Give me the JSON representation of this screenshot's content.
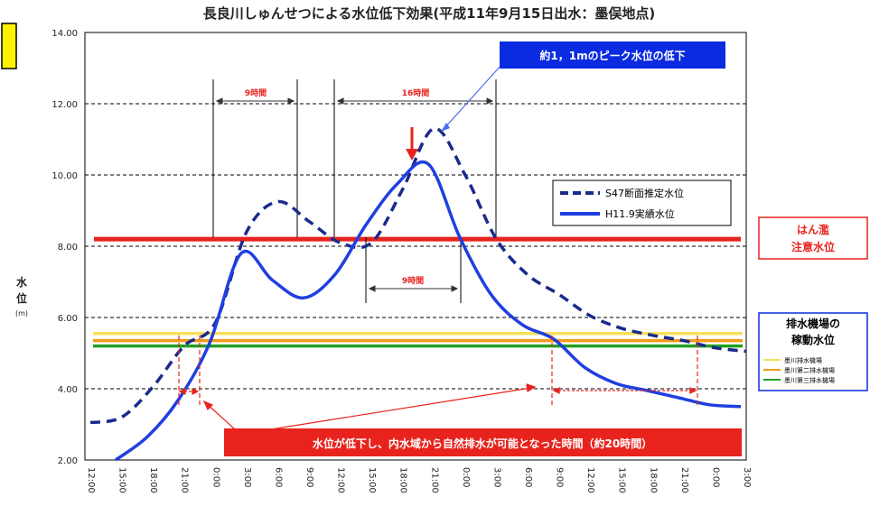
{
  "chart_data": {
    "type": "line",
    "title": "長良川しゅんせつによる水位低下効果(平成11年9月15日出水：墨俣地点)",
    "ylabel": "水\n位",
    "yunit": "(m)",
    "ylim": [
      2.0,
      14.0
    ],
    "yticks": [
      "2.00",
      "4.00",
      "6.00",
      "8.00",
      "10.00",
      "12.00",
      "14.00"
    ],
    "ytick_values": [
      2,
      4,
      6,
      8,
      10,
      12,
      14
    ],
    "xlabels": [
      "12:00",
      "15:00",
      "18:00",
      "21:00",
      "0:00",
      "3:00",
      "6:00",
      "9:00",
      "12:00",
      "15:00",
      "18:00",
      "21:00",
      "0:00",
      "3:00",
      "6:00",
      "9:00",
      "12:00",
      "15:00",
      "18:00",
      "21:00",
      "0:00",
      "3:00"
    ],
    "grid": "horizontal dashed",
    "series": [
      {
        "name": "S47断面推定水位",
        "style": "dashed",
        "color": "#1a2b8c",
        "values": [
          3.05,
          3.2,
          4.05,
          5.2,
          5.85,
          8.4,
          9.25,
          8.7,
          8.1,
          8.1,
          9.6,
          11.3,
          10.0,
          8.2,
          7.2,
          6.65,
          6.05,
          5.7,
          5.5,
          5.35,
          5.15,
          5.05
        ]
      },
      {
        "name": "H11.9実績水位",
        "style": "solid",
        "color": "#1f3fe0",
        "values": [
          null,
          1.65,
          2.65,
          3.7,
          5.3,
          7.8,
          7.05,
          6.55,
          7.2,
          8.6,
          9.75,
          10.3,
          8.25,
          6.65,
          5.8,
          5.4,
          4.6,
          4.15,
          3.95,
          3.75,
          3.55,
          3.5
        ]
      }
    ],
    "threshold_lines": [
      {
        "name": "はん濫注意水位",
        "value": 8.2,
        "color": "#e8231d"
      },
      {
        "name": "墨川排水機場",
        "value": 5.55,
        "color": "#f5e05a"
      },
      {
        "name": "墨川第二排水機場",
        "value": 5.35,
        "color": "#f39b1a"
      },
      {
        "name": "墨川第三排水機場",
        "value": 5.2,
        "color": "#22a022"
      }
    ],
    "annotations": {
      "peak_banner": "約1，1mのピーク水位の低下",
      "span_a": "9時間",
      "span_b": "16時間",
      "span_c": "9時間",
      "bottom_banner": "水位が低下し、内水域から自然排水が可能となった時間（約20時間）",
      "flood_box_line1": "はん濫",
      "flood_box_line2": "注意水位",
      "pump_box_title1": "排水機場の",
      "pump_box_title2": "稼動水位",
      "pump_items": [
        "墨川排水機場",
        "墨川第二排水機場",
        "墨川第三排水機場"
      ]
    },
    "legend_position": "upper-right"
  }
}
